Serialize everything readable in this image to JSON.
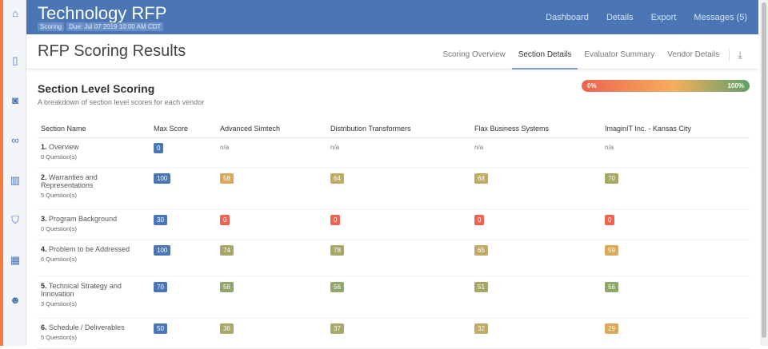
{
  "sidebar": {
    "icons": [
      "home-icon",
      "file-icon",
      "camera-icon",
      "binoculars-icon",
      "bar-chart-icon",
      "bookmark-icon",
      "building-icon",
      "users-icon"
    ]
  },
  "header": {
    "title": "Technology RFP",
    "status_tag": "Scoring",
    "due_tag": "Due: Jul 07 2019 10:00 AM CDT",
    "nav": [
      "Dashboard",
      "Details",
      "Export",
      "Messages (5)"
    ]
  },
  "page": {
    "title": "RFP Scoring Results",
    "tabs": [
      "Scoring Overview",
      "Section Details",
      "Evaluator Summary",
      "Vendor Details"
    ],
    "active_tab": "Section Details"
  },
  "section": {
    "title": "Section Level Scoring",
    "subtitle": "A breakdown of section level scores for each vendor",
    "legend_min": "0%",
    "legend_max": "100%"
  },
  "colors": {
    "max": "#4a76b5",
    "red": "#ef6351",
    "orange": "#dca85c",
    "tan": "#c2aa63",
    "olive": "#a8a765",
    "green": "#8fa86a"
  },
  "table": {
    "headers": [
      "Section Name",
      "Max Score",
      "Advanced Simtech",
      "Distribution Transformers",
      "Flax Business Systems",
      "ImaginIT Inc. - Kansas City"
    ],
    "rows": [
      {
        "num": "1.",
        "name": "Overview",
        "questions": "0 Question(s)",
        "max": "0",
        "scores": [
          "n/a",
          "n/a",
          "n/a",
          "n/a"
        ],
        "colors": [
          null,
          null,
          null,
          null
        ]
      },
      {
        "num": "2.",
        "name": "Warranties and Representations",
        "questions": "5 Question(s)",
        "max": "100",
        "scores": [
          "58",
          "64",
          "68",
          "70"
        ],
        "colors": [
          "orange",
          "tan",
          "tan",
          "olive"
        ]
      },
      {
        "num": "3.",
        "name": "Program Background",
        "questions": "0 Question(s)",
        "max": "30",
        "scores": [
          "0",
          "0",
          "0",
          "0"
        ],
        "colors": [
          "red",
          "red",
          "red",
          "red"
        ]
      },
      {
        "num": "4.",
        "name": "Problem to be Addressed",
        "questions": "6 Question(s)",
        "max": "100",
        "scores": [
          "74",
          "78",
          "65",
          "59"
        ],
        "colors": [
          "olive",
          "olive",
          "tan",
          "orange"
        ]
      },
      {
        "num": "5.",
        "name": "Technical Strategy and Innovation",
        "questions": "3 Question(s)",
        "max": "70",
        "scores": [
          "56",
          "56",
          "51",
          "56"
        ],
        "colors": [
          "green",
          "green",
          "olive",
          "green"
        ]
      },
      {
        "num": "6.",
        "name": "Schedule / Deliverables",
        "questions": "5 Question(s)",
        "max": "50",
        "scores": [
          "36",
          "37",
          "32",
          "29"
        ],
        "colors": [
          "olive",
          "olive",
          "tan",
          "orange"
        ]
      }
    ]
  }
}
